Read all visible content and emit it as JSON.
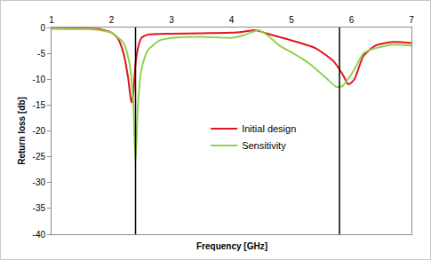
{
  "chart_data": {
    "type": "line",
    "x_label": "Frequency [GHz]",
    "y_label": "Return loss [db]",
    "xlim": [
      1,
      7
    ],
    "xticks": [
      1,
      2,
      3,
      4,
      5,
      6,
      7
    ],
    "ylim": [
      -40,
      0
    ],
    "yticks": [
      -40,
      -35,
      -30,
      -25,
      -20,
      -15,
      -10,
      -5,
      0
    ],
    "grid": false,
    "legend": "center",
    "vertical_lines": [
      2.4,
      5.8
    ],
    "series": [
      {
        "name": "Initial design",
        "color": "#e3141c",
        "x": [
          1,
          1.5,
          1.8,
          2.0,
          2.1,
          2.2,
          2.28,
          2.33,
          2.36,
          2.4,
          2.45,
          2.5,
          2.6,
          3.0,
          3.5,
          4.0,
          4.2,
          4.4,
          4.6,
          5.0,
          5.4,
          5.7,
          5.85,
          5.95,
          6.05,
          6.2,
          6.4,
          6.7,
          7.0
        ],
        "values": [
          -0.2,
          -0.2,
          -0.3,
          -1,
          -2,
          -5,
          -10,
          -14.5,
          -13,
          -7,
          -3.5,
          -2,
          -1.4,
          -1.2,
          -1.1,
          -1.0,
          -0.8,
          -0.5,
          -1.2,
          -2.5,
          -4,
          -6.5,
          -9,
          -11,
          -10,
          -5.5,
          -3.5,
          -2.8,
          -3.0
        ]
      },
      {
        "name": "Sensitivity",
        "color": "#92d050",
        "x": [
          1,
          1.5,
          1.8,
          2.0,
          2.2,
          2.3,
          2.36,
          2.4,
          2.44,
          2.5,
          2.6,
          2.8,
          3.0,
          3.5,
          4.0,
          4.2,
          4.45,
          4.6,
          4.8,
          5.0,
          5.3,
          5.6,
          5.75,
          5.85,
          6.0,
          6.1,
          6.2,
          6.4,
          6.7,
          7.0
        ],
        "values": [
          -0.2,
          -0.3,
          -0.5,
          -1,
          -3,
          -7,
          -14,
          -26,
          -15,
          -8,
          -4.5,
          -2.5,
          -2,
          -1.8,
          -2,
          -1.5,
          -0.5,
          -1.5,
          -3.5,
          -4.8,
          -7,
          -10,
          -11.5,
          -11.3,
          -9,
          -7,
          -5,
          -4,
          -3.3,
          -3.5
        ]
      }
    ]
  }
}
